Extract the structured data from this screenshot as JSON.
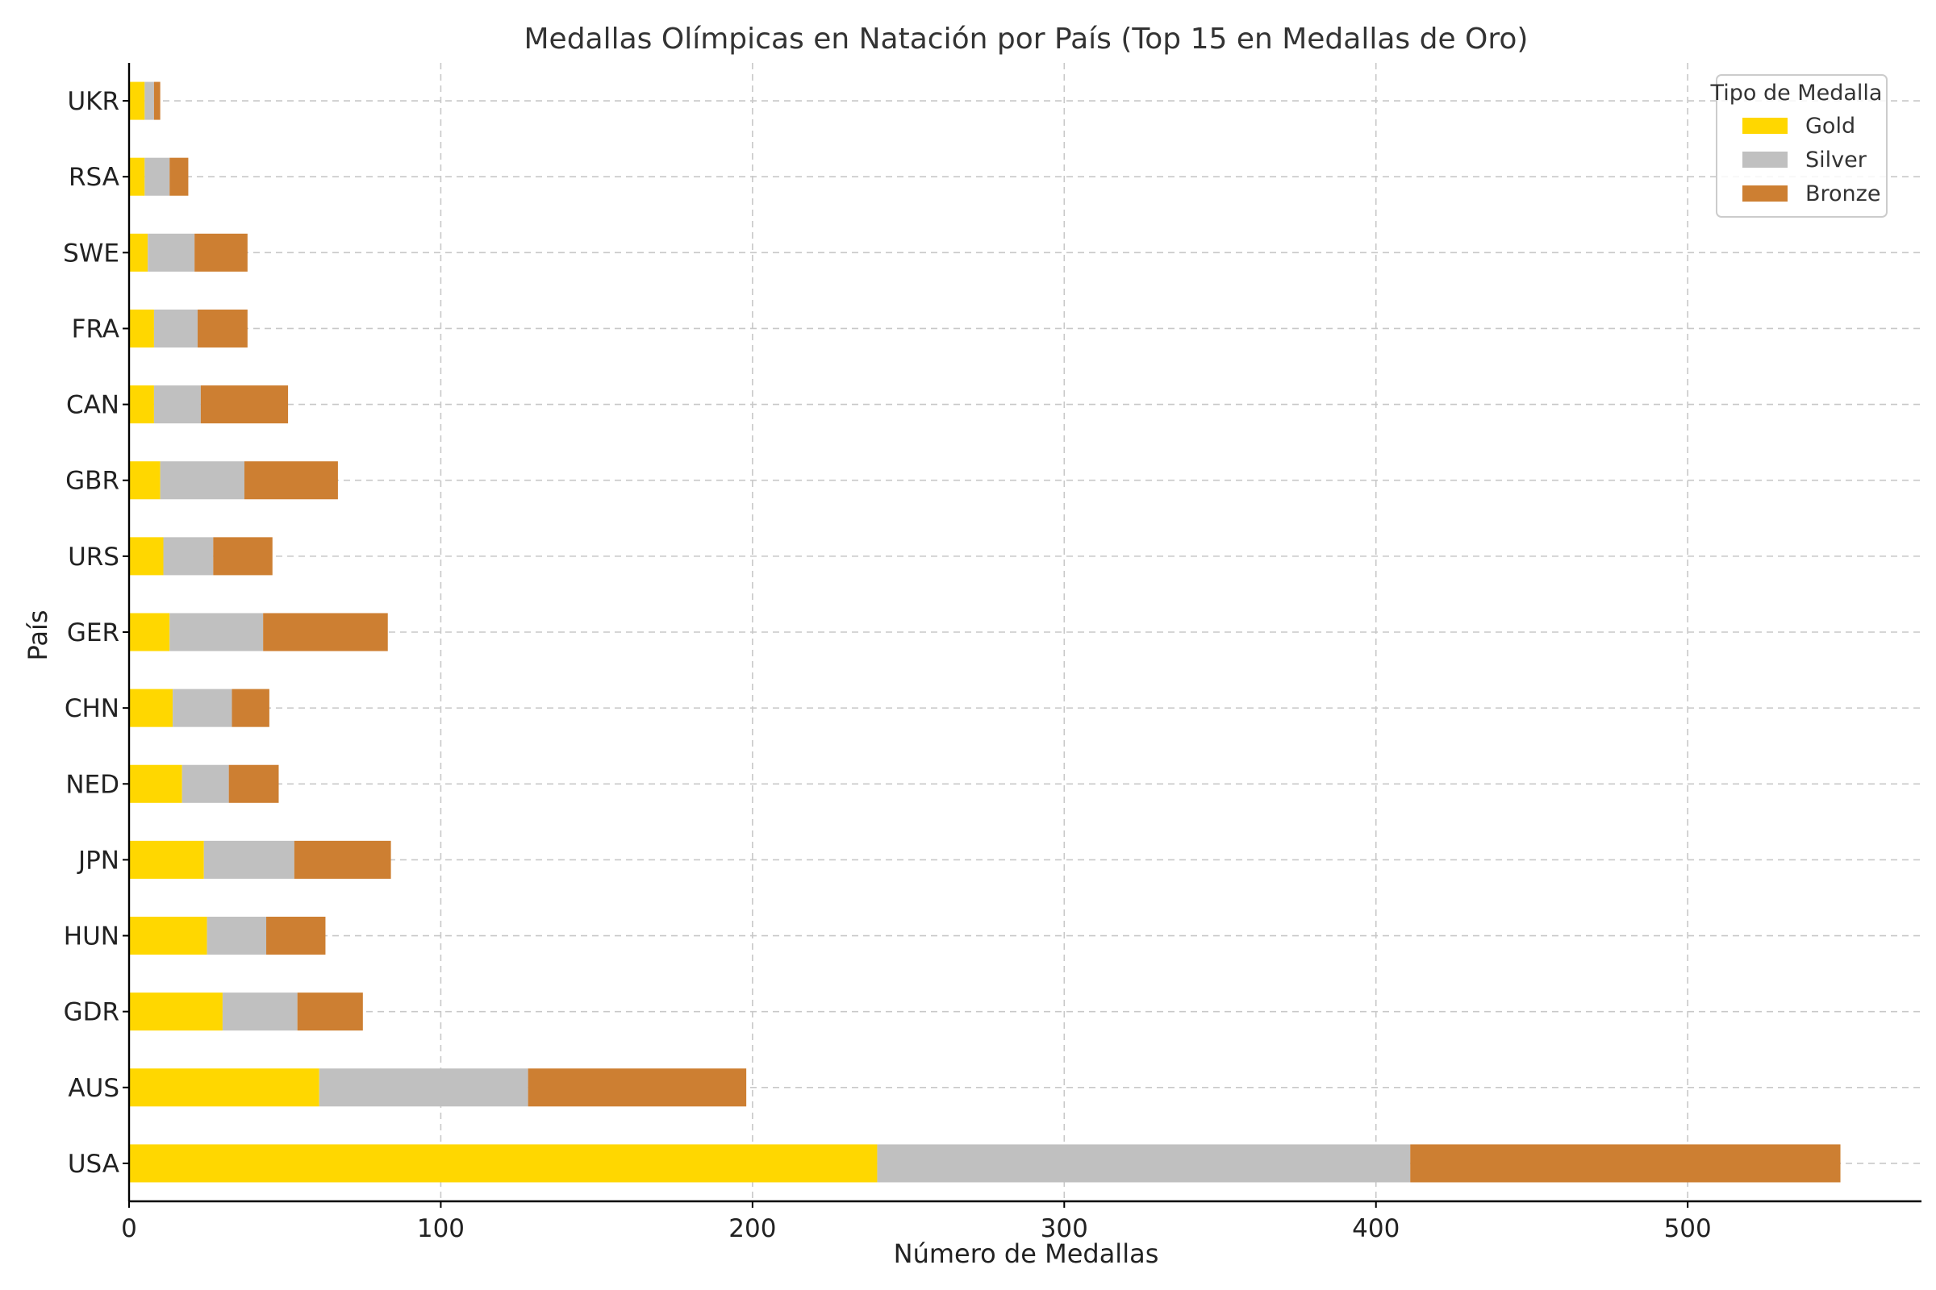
{
  "chart_data": {
    "type": "bar",
    "orientation": "horizontal",
    "stacked": true,
    "title": "Medallas Olímpicas en Natación por País (Top 15 en Medallas de Oro)",
    "xlabel": "Número de Medallas",
    "ylabel": "País",
    "xlim": [
      0,
      575
    ],
    "xticks": [
      0,
      100,
      200,
      300,
      400,
      500
    ],
    "xtick_labels": [
      "0",
      "100",
      "200",
      "300",
      "400",
      "500"
    ],
    "grid": true,
    "legend_title": "Tipo de Medalla",
    "legend_position": "top-right",
    "categories": [
      "USA",
      "AUS",
      "GDR",
      "HUN",
      "JPN",
      "NED",
      "CHN",
      "GER",
      "URS",
      "GBR",
      "CAN",
      "FRA",
      "SWE",
      "RSA",
      "UKR"
    ],
    "series": [
      {
        "name": "Gold",
        "color": "#FFD700",
        "values": [
          240,
          61,
          30,
          25,
          24,
          17,
          14,
          13,
          11,
          10,
          8,
          8,
          6,
          5,
          5
        ]
      },
      {
        "name": "Silver",
        "color": "#C0C0C0",
        "values": [
          171,
          67,
          24,
          19,
          29,
          15,
          19,
          30,
          16,
          27,
          15,
          14,
          15,
          8,
          3
        ]
      },
      {
        "name": "Bronze",
        "color": "#CD7F32",
        "values": [
          138,
          70,
          21,
          19,
          31,
          16,
          12,
          40,
          19,
          30,
          28,
          16,
          17,
          6,
          2
        ]
      }
    ]
  }
}
